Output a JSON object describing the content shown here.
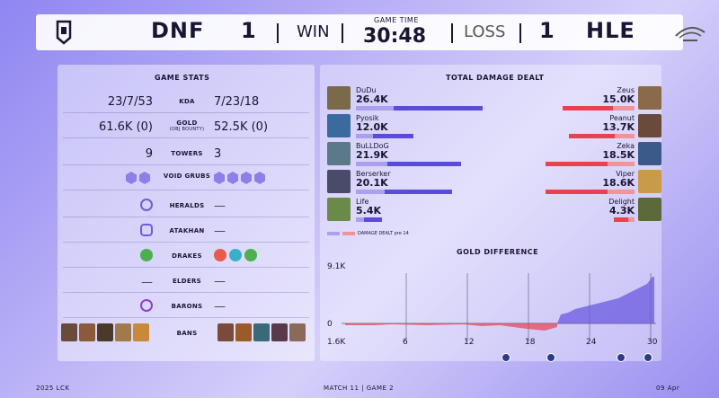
{
  "header": {
    "team_left": "DNF",
    "score_left": "1",
    "result_left": "WIN",
    "game_time_label": "GAME TIME",
    "game_time": "30:48",
    "result_right": "LOSS",
    "score_right": "1",
    "team_right": "HLE"
  },
  "stats": {
    "title": "GAME STATS",
    "kda": {
      "label": "KDA",
      "left": "23/7/53",
      "right": "7/23/18"
    },
    "gold": {
      "label": "GOLD",
      "sublabel": "(OBJ BOUNTY)",
      "left": "61.6K (0)",
      "right": "52.5K (0)"
    },
    "towers": {
      "label": "TOWERS",
      "left": "9",
      "right": "3"
    },
    "grubs": {
      "label": "VOID GRUBS",
      "left_count": 2,
      "right_count": 4
    },
    "heralds": {
      "label": "HERALDS",
      "right": "—"
    },
    "atakhan": {
      "label": "ATAKHAN",
      "right": "—"
    },
    "drakes": {
      "label": "DRAKES"
    },
    "elders": {
      "label": "ELDERS",
      "left": "—",
      "right": "—"
    },
    "barons": {
      "label": "BARONS",
      "right": "—"
    },
    "bans": {
      "label": "BANS"
    }
  },
  "damage": {
    "title": "TOTAL DAMAGE DEALT",
    "legend": "DAMAGE DEALT pre 14",
    "blue": [
      {
        "name": "DuDu",
        "value": "26.4K",
        "total": 26.4
      },
      {
        "name": "Pyosik",
        "value": "12.0K",
        "total": 12.0
      },
      {
        "name": "BuLLDoG",
        "value": "21.9K",
        "total": 21.9
      },
      {
        "name": "Berserker",
        "value": "20.1K",
        "total": 20.1
      },
      {
        "name": "Life",
        "value": "5.4K",
        "total": 5.4
      }
    ],
    "red": [
      {
        "name": "Zeus",
        "value": "15.0K",
        "total": 15.0
      },
      {
        "name": "Peanut",
        "value": "13.7K",
        "total": 13.7
      },
      {
        "name": "Zeka",
        "value": "18.5K",
        "total": 18.5
      },
      {
        "name": "Viper",
        "value": "18.6K",
        "total": 18.6
      },
      {
        "name": "Delight",
        "value": "4.3K",
        "total": 4.3
      }
    ]
  },
  "gold_diff": {
    "title": "GOLD DIFFERENCE",
    "y_max_label": "9.1K",
    "y_zero_label": "0",
    "x_labels": [
      "1.6K",
      "6",
      "12",
      "18",
      "24",
      "30"
    ]
  },
  "colors": {
    "blue_team": "#5b4bdb",
    "red_team": "#e8424f"
  },
  "footer": {
    "left": "2025 LCK",
    "center": "MATCH 11  |  GAME 2",
    "right": "09 Apr"
  }
}
